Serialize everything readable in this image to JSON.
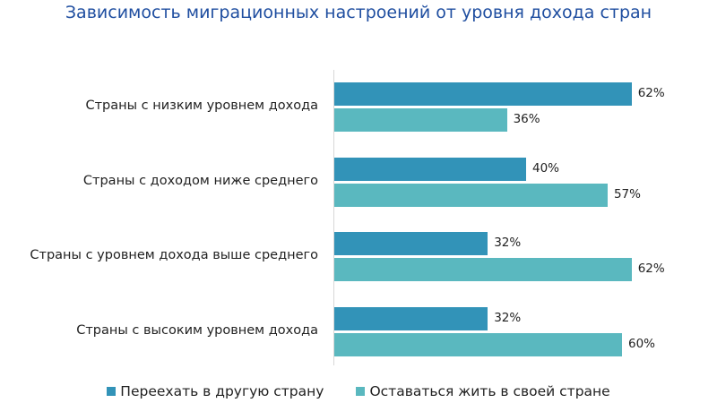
{
  "chart_data": {
    "type": "bar",
    "orientation": "horizontal",
    "title": "Зависимость миграционных настроений от уровня дохода стран",
    "categories": [
      "Страны с низким уровнем дохода",
      "Страны с доходом ниже среднего",
      "Страны с уровнем дохода выше среднего",
      "Страны с высоким уровнем дохода"
    ],
    "series": [
      {
        "name": "Переехать в другую страну",
        "values": [
          62,
          40,
          32,
          32
        ],
        "labels": [
          "62%",
          "40%",
          "32%",
          "32%"
        ],
        "color": "#3293b8"
      },
      {
        "name": "Оставаться жить в своей стране",
        "values": [
          36,
          57,
          62,
          60
        ],
        "labels": [
          "36%",
          "57%",
          "62%",
          "60%"
        ],
        "color": "#5ab8bf"
      }
    ],
    "xlim": [
      0,
      100
    ],
    "grid": false,
    "legend": "bottom"
  }
}
